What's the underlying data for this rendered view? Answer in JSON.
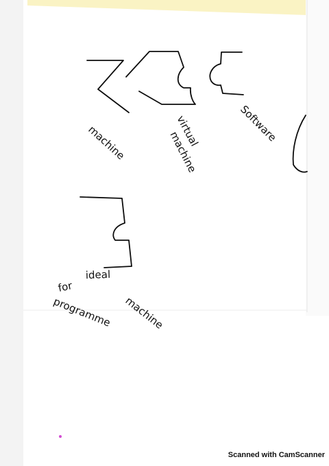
{
  "labels": {
    "machine": "machine",
    "virtual": "virtual",
    "virtual_machine": "machine",
    "software": "Software",
    "ideal": "ideal",
    "ideal_machine": "machine",
    "for": "for",
    "programme": "programme"
  },
  "watermark": "Scanned with CamScanner"
}
